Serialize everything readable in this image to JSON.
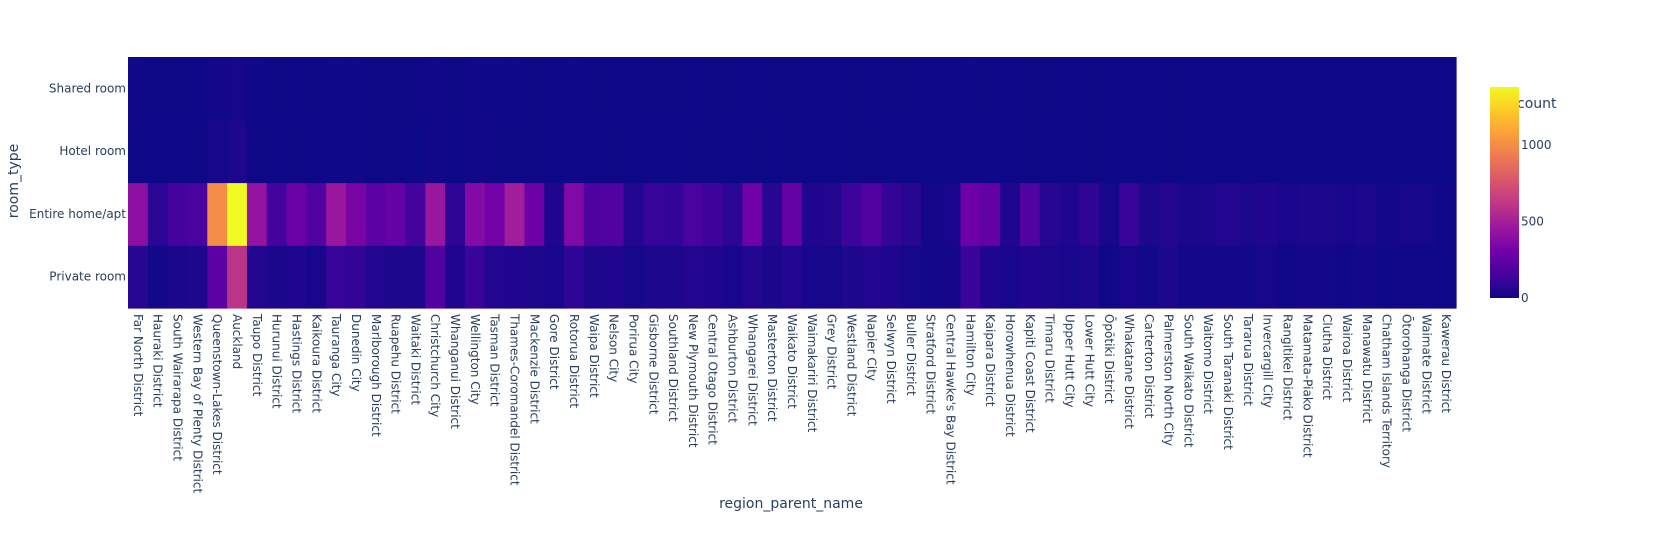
{
  "chart_data": {
    "type": "heatmap",
    "title": "",
    "xlabel": "region_parent_name",
    "ylabel": "room_type",
    "colorbar_title": "count",
    "colorbar_ticks": [
      0,
      500,
      1000
    ],
    "zmin": 0,
    "zmax": 1380,
    "colorscale": [
      "#0d0887",
      "#46039f",
      "#7201a8",
      "#9c179e",
      "#bd3786",
      "#d8576b",
      "#ed7953",
      "#fb9f3a",
      "#fdca26",
      "#f0f921"
    ],
    "x": [
      "Far North District",
      "Hauraki District",
      "South Wairarapa District",
      "Western Bay of Plenty District",
      "Queenstown-Lakes District",
      "Auckland",
      "Taupo District",
      "Hurunui District",
      "Hastings District",
      "Kaikoura District",
      "Tauranga City",
      "Dunedin City",
      "Marlborough District",
      "Ruapehu District",
      "Waitaki District",
      "Christchurch City",
      "Whanganui District",
      "Wellington City",
      "Tasman District",
      "Thames-Coromandel District",
      "Mackenzie District",
      "Gore District",
      "Rotorua District",
      "Waipa District",
      "Nelson City",
      "Porirua City",
      "Gisborne District",
      "Southland District",
      "New Plymouth District",
      "Central Otago District",
      "Ashburton District",
      "Whangarei District",
      "Masterton District",
      "Waikato District",
      "Waimakariri District",
      "Grey District",
      "Westland District",
      "Napier City",
      "Selwyn District",
      "Buller District",
      "Stratford District",
      "Central Hawke's Bay District",
      "Hamilton City",
      "Kaipara District",
      "Horowhenua District",
      "Kapiti Coast District",
      "Timaru District",
      "Upper Hutt City",
      "Lower Hutt City",
      "Ōpōtiki District",
      "Whakatane District",
      "Carterton District",
      "Palmerston North City",
      "South Waikato District",
      "Waitomo District",
      "South Taranaki District",
      "Tararua District",
      "Invercargill City",
      "Rangitikei District",
      "Matamata-Piako District",
      "Clutha District",
      "Wairoa District",
      "Manawatu District",
      "Chatham Islands Territory",
      "Ōtorohanga District",
      "Waimate District",
      "Kawerau District"
    ],
    "y": [
      "Private room",
      "Entire home/apt",
      "Hotel room",
      "Shared room"
    ],
    "z": [
      [
        70,
        15,
        35,
        40,
        230,
        600,
        60,
        35,
        45,
        30,
        110,
        100,
        60,
        40,
        40,
        200,
        50,
        120,
        60,
        50,
        40,
        30,
        90,
        40,
        50,
        25,
        40,
        40,
        60,
        50,
        30,
        60,
        35,
        60,
        30,
        25,
        40,
        60,
        45,
        25,
        15,
        20,
        120,
        50,
        30,
        50,
        40,
        30,
        40,
        10,
        30,
        15,
        40,
        15,
        15,
        20,
        15,
        25,
        10,
        20,
        15,
        10,
        15,
        5,
        10,
        10,
        5
      ],
      [
        400,
        80,
        150,
        170,
        1000,
        1380,
        430,
        150,
        280,
        190,
        450,
        330,
        230,
        260,
        150,
        450,
        90,
        370,
        310,
        490,
        290,
        50,
        360,
        180,
        200,
        60,
        110,
        100,
        170,
        130,
        80,
        300,
        70,
        260,
        50,
        60,
        130,
        200,
        100,
        70,
        20,
        30,
        290,
        250,
        50,
        190,
        70,
        50,
        90,
        25,
        110,
        40,
        60,
        35,
        40,
        60,
        40,
        50,
        30,
        40,
        40,
        30,
        40,
        15,
        30,
        25,
        10
      ],
      [
        3,
        1,
        1,
        2,
        25,
        40,
        3,
        1,
        2,
        1,
        5,
        6,
        2,
        2,
        1,
        12,
        1,
        10,
        3,
        2,
        2,
        1,
        4,
        1,
        3,
        1,
        1,
        1,
        3,
        2,
        1,
        2,
        1,
        2,
        1,
        1,
        2,
        3,
        1,
        1,
        0,
        0,
        4,
        1,
        1,
        2,
        1,
        1,
        2,
        0,
        1,
        0,
        2,
        0,
        0,
        1,
        0,
        1,
        0,
        1,
        0,
        0,
        0,
        0,
        0,
        0,
        0
      ],
      [
        8,
        2,
        3,
        4,
        15,
        25,
        6,
        2,
        4,
        2,
        6,
        6,
        3,
        3,
        2,
        12,
        2,
        8,
        5,
        5,
        3,
        1,
        6,
        2,
        4,
        1,
        2,
        2,
        4,
        3,
        2,
        4,
        2,
        3,
        1,
        1,
        3,
        4,
        2,
        2,
        1,
        1,
        6,
        2,
        1,
        3,
        2,
        1,
        2,
        1,
        1,
        1,
        2,
        1,
        1,
        1,
        1,
        1,
        1,
        1,
        1,
        1,
        1,
        0,
        1,
        1,
        0
      ]
    ]
  }
}
